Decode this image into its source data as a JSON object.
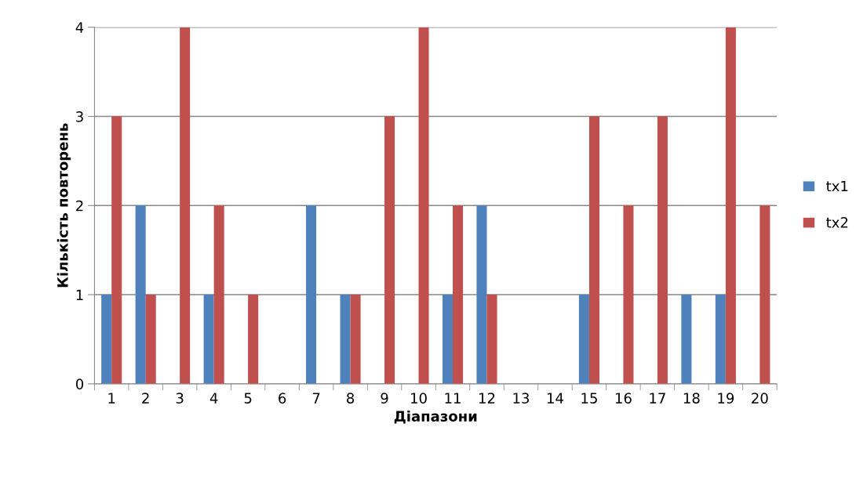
{
  "chart_data": {
    "type": "bar",
    "xlabel": "Діапазони",
    "ylabel": "Кількість повторень",
    "categories": [
      "1",
      "2",
      "3",
      "4",
      "5",
      "6",
      "7",
      "8",
      "9",
      "10",
      "11",
      "12",
      "13",
      "14",
      "15",
      "16",
      "17",
      "18",
      "19",
      "20"
    ],
    "series": [
      {
        "name": "tx1",
        "color": "#4f81bd",
        "values": [
          1,
          2,
          0,
          1,
          0,
          0,
          2,
          1,
          0,
          0,
          1,
          2,
          0,
          0,
          1,
          0,
          0,
          1,
          1,
          0
        ]
      },
      {
        "name": "tx2",
        "color": "#c0504d",
        "values": [
          3,
          1,
          4,
          2,
          1,
          0,
          0,
          1,
          3,
          4,
          2,
          1,
          0,
          0,
          3,
          2,
          3,
          0,
          4,
          2
        ]
      }
    ],
    "ylim": [
      0,
      4
    ],
    "yticks": [
      0,
      1,
      2,
      3,
      4
    ],
    "grid": "y",
    "legend": "right"
  }
}
